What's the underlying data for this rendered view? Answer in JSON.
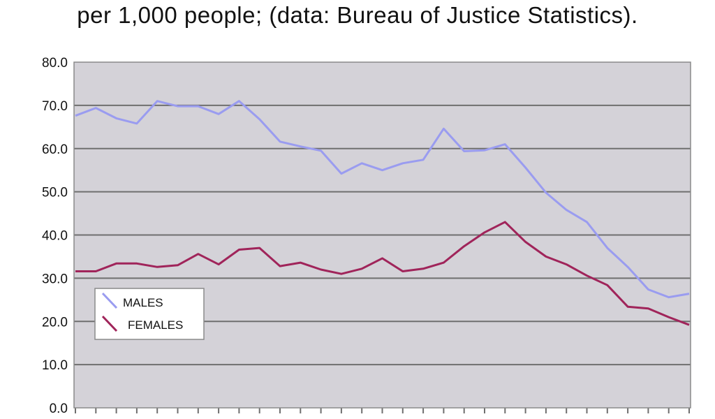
{
  "chart_data": {
    "type": "line",
    "title": "per 1,000 people; (data: Bureau of Justice Statistics).",
    "ylim": [
      0,
      80
    ],
    "yticks": [
      "0.0",
      "10.0",
      "20.0",
      "30.0",
      "40.0",
      "50.0",
      "60.0",
      "70.0",
      "80.0"
    ],
    "grid": true,
    "legend_position": "left",
    "plot_background": "#d4d2d8",
    "series": [
      {
        "name": "MALES",
        "color": "#9a9cf0",
        "values": [
          67.6,
          69.4,
          67.0,
          65.8,
          71.0,
          69.8,
          69.8,
          68.0,
          71.0,
          66.8,
          61.6,
          60.5,
          59.5,
          54.2,
          56.6,
          55.0,
          56.6,
          57.4,
          64.6,
          59.4,
          59.6,
          61.0,
          55.6,
          49.8,
          45.8,
          43.0,
          37.0,
          32.6,
          27.4,
          25.6,
          26.4
        ]
      },
      {
        "name": "FEMALES",
        "color": "#a0245a",
        "values": [
          31.6,
          31.6,
          33.4,
          33.4,
          32.6,
          33.0,
          35.6,
          33.2,
          36.6,
          37.0,
          32.8,
          33.6,
          32.0,
          31.0,
          32.2,
          34.6,
          31.6,
          32.2,
          33.6,
          37.4,
          40.6,
          43.0,
          38.4,
          35.0,
          33.2,
          30.6,
          28.4,
          23.4,
          23.0,
          21.0,
          19.2
        ]
      }
    ]
  }
}
